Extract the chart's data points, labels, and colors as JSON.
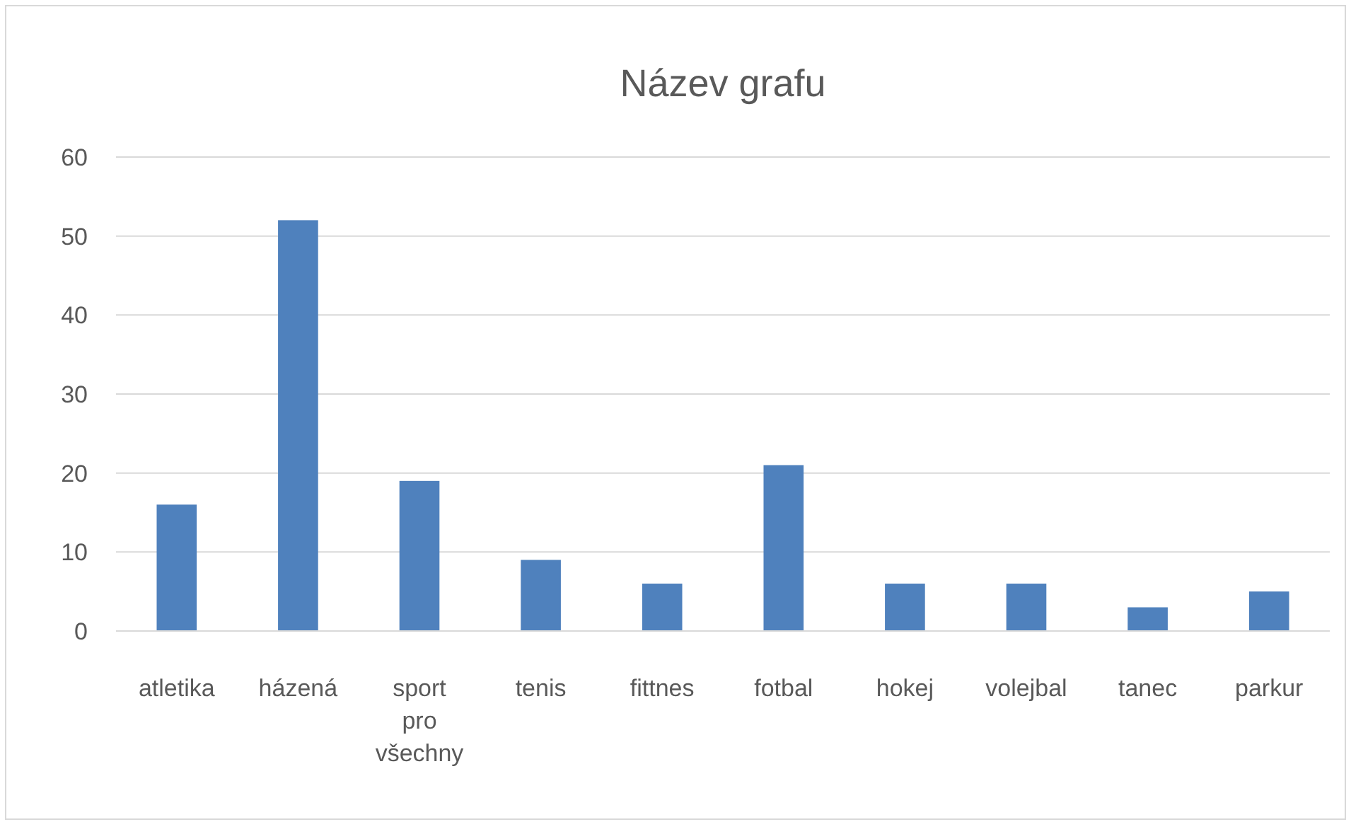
{
  "chart_data": {
    "type": "bar",
    "title": "Název grafu",
    "categories": [
      "atletika",
      "házená",
      "sport pro všechny",
      "tenis",
      "fittnes",
      "fotbal",
      "hokej",
      "volejbal",
      "tanec",
      "parkur"
    ],
    "values": [
      16,
      52,
      19,
      9,
      6,
      21,
      6,
      6,
      3,
      5
    ],
    "color": "#4f81bd",
    "ylim": [
      0,
      60
    ],
    "yticks": [
      0,
      10,
      20,
      30,
      40,
      50,
      60
    ],
    "grid": "y"
  }
}
